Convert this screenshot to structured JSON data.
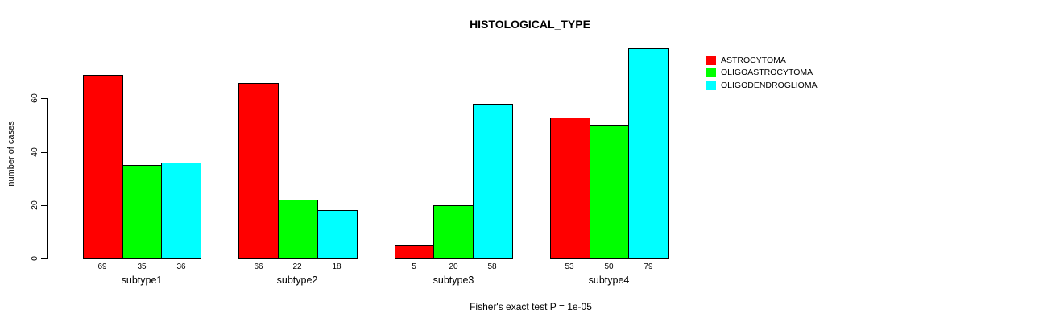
{
  "title": "HISTOLOGICAL_TYPE",
  "y_axis_title": "number of cases",
  "caption": "Fisher's exact test P = 1e-05",
  "colors": {
    "astrocytoma": "#ff0000",
    "oligoastrocytoma": "#00ff00",
    "oligodendroglioma": "#00ffff",
    "axis": "#000000",
    "background": "#ffffff"
  },
  "chart_data": {
    "type": "bar",
    "title": "HISTOLOGICAL_TYPE",
    "xlabel": "",
    "ylabel": "number of cases",
    "categories": [
      "subtype1",
      "subtype2",
      "subtype3",
      "subtype4"
    ],
    "series": [
      {
        "name": "ASTROCYTOMA",
        "color": "#ff0000",
        "values": [
          69,
          66,
          5,
          53
        ]
      },
      {
        "name": "OLIGOASTROCYTOMA",
        "color": "#00ff00",
        "values": [
          35,
          22,
          20,
          50
        ]
      },
      {
        "name": "OLIGODENDROGLIOMA",
        "color": "#00ffff",
        "values": [
          36,
          18,
          58,
          79
        ]
      }
    ],
    "bar_value_labels": [
      [
        "69",
        "35",
        "36"
      ],
      [
        "66",
        "22",
        "18"
      ],
      [
        "5",
        "20",
        "58"
      ],
      [
        "53",
        "50",
        "79"
      ]
    ],
    "yticks": [
      0,
      20,
      40,
      60
    ],
    "ylim": [
      0,
      80
    ],
    "grid": false,
    "legend_position": "right",
    "annotation": "Fisher's exact test P = 1e-05"
  }
}
